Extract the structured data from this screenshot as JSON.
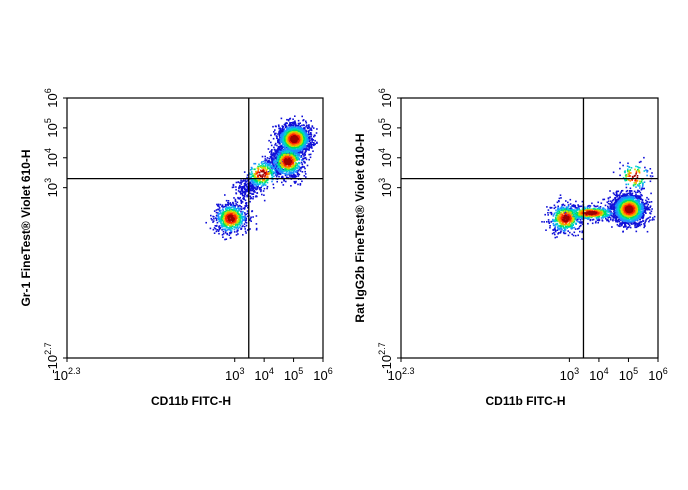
{
  "chart_data": [
    {
      "type": "scatter",
      "subtype": "flow-cytometry density plot",
      "xlabel": "CD11b FITC-H",
      "ylabel": "Gr-1  FineTest® Violet 610-H",
      "xscale": "biexponential",
      "yscale": "biexponential",
      "x_ticks": [
        {
          "base": "10",
          "exp": "2.3"
        },
        {
          "base": "10",
          "exp": "3"
        },
        {
          "base": "10",
          "exp": "4"
        },
        {
          "base": "10",
          "exp": "5"
        },
        {
          "base": "10",
          "exp": "6"
        }
      ],
      "y_ticks": [
        {
          "base": "-10",
          "exp": "2.7"
        },
        {
          "base": "10",
          "exp": "3"
        },
        {
          "base": "10",
          "exp": "4"
        },
        {
          "base": "10",
          "exp": "5"
        },
        {
          "base": "10",
          "exp": "6"
        }
      ],
      "quadrant_gates": {
        "x": 3000,
        "y": 2000
      },
      "populations": [
        {
          "x_center": 700,
          "y_center": 100,
          "n": 650,
          "shape": "diffuse low-low cluster"
        },
        {
          "x_center": 100000,
          "y_center": 45000,
          "n": 1700,
          "shape": "dense high-high cluster (peak)"
        },
        {
          "x_center": 60000,
          "y_center": 8000,
          "n": 700,
          "shape": "tail toward high cluster"
        },
        {
          "x_center": 8000,
          "y_center": 3000,
          "n": 700,
          "shape": "diagonal streak"
        }
      ],
      "density_colors": [
        "#1010d8",
        "#1e90ff",
        "#00d0d0",
        "#00e060",
        "#c8e000",
        "#ff9000",
        "#ff2000",
        "#a00000"
      ]
    },
    {
      "type": "scatter",
      "subtype": "flow-cytometry density plot",
      "xlabel": "CD11b FITC-H",
      "ylabel": "Rat IgG2b  FineTest® Violet 610-H",
      "xscale": "biexponential",
      "yscale": "biexponential",
      "x_ticks": [
        {
          "base": "10",
          "exp": "2.3"
        },
        {
          "base": "10",
          "exp": "3"
        },
        {
          "base": "10",
          "exp": "4"
        },
        {
          "base": "10",
          "exp": "5"
        },
        {
          "base": "10",
          "exp": "6"
        }
      ],
      "y_ticks": [
        {
          "base": "-10",
          "exp": "2.7"
        },
        {
          "base": "10",
          "exp": "3"
        },
        {
          "base": "10",
          "exp": "4"
        },
        {
          "base": "10",
          "exp": "5"
        },
        {
          "base": "10",
          "exp": "6"
        }
      ],
      "quadrant_gates": {
        "x": 3000,
        "y": 2000
      },
      "populations": [
        {
          "x_center": 700,
          "y_center": 100,
          "n": 500,
          "shape": "diffuse low cluster"
        },
        {
          "x_center": 5000,
          "y_center": 150,
          "n": 500,
          "shape": "horizontal band"
        },
        {
          "x_center": 100000,
          "y_center": 200,
          "n": 1800,
          "shape": "dense high-x low-y cluster (peak)"
        },
        {
          "x_center": 150000,
          "y_center": 2500,
          "n": 120,
          "shape": "sparse upper scatter"
        }
      ],
      "density_colors": [
        "#1010d8",
        "#1e90ff",
        "#00d0d0",
        "#00e060",
        "#c8e000",
        "#ff9000",
        "#ff2000",
        "#a00000"
      ]
    }
  ]
}
